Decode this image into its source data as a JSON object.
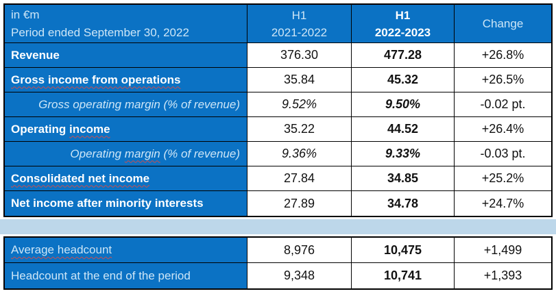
{
  "colors": {
    "table_blue": "#0B72C4",
    "spacer_band_light_blue": "#BDD7EA",
    "light_blue_text": "#CDE6F7",
    "value_text_black": "#111111",
    "spellcheck_squiggle_red": "#C94F4F",
    "border_black": "#000000",
    "cell_white": "#FFFFFF"
  },
  "chart_data": {
    "type": "table",
    "title_cell": {
      "line1": "in €m",
      "line2": "Period ended September 30, 2022"
    },
    "column_headers": {
      "col_2021": {
        "line1": "H1",
        "line2": "2021-2022"
      },
      "col_2022": {
        "line1": "H1",
        "line2": "2022-2023"
      },
      "col_change": "Change"
    },
    "rows": [
      {
        "label": "Revenue",
        "h1_2021_2022": "376.30",
        "h1_2022_2023": "477.28",
        "change": "+26.8%"
      },
      {
        "label": "Gross income from operations",
        "h1_2021_2022": "35.84",
        "h1_2022_2023": "45.32",
        "change": "+26.5%"
      },
      {
        "label": "Gross operating margin (% of revenue)",
        "h1_2021_2022": "9.52%",
        "h1_2022_2023": "9.50%",
        "change": "-0.02 pt."
      },
      {
        "label": "Operating income",
        "label_parts": [
          "Operating ",
          "income",
          ""
        ],
        "h1_2021_2022": "35.22",
        "h1_2022_2023": "44.52",
        "change": "+26.4%"
      },
      {
        "label": "Operating margin (% of revenue)",
        "label_parts": [
          "Operating ",
          "margin",
          " (% of revenue)"
        ],
        "h1_2021_2022": "9.36%",
        "h1_2022_2023": "9.33%",
        "change": "-0.03 pt."
      },
      {
        "label": "Consolidated net income",
        "h1_2021_2022": "27.84",
        "h1_2022_2023": "34.85",
        "change": "+25.2%"
      },
      {
        "label": "Net income after minority interests",
        "h1_2021_2022": "27.89",
        "h1_2022_2023": "34.78",
        "change": "+24.7%"
      }
    ],
    "bottom_rows": [
      {
        "label": "Average headcount",
        "h1_2021_2022": "8,976",
        "h1_2022_2023": "10,475",
        "change": "+1,499"
      },
      {
        "label": "Headcount at the end of the period",
        "h1_2021_2022": "9,348",
        "h1_2022_2023": "10,741",
        "change": "+1,393"
      }
    ]
  }
}
